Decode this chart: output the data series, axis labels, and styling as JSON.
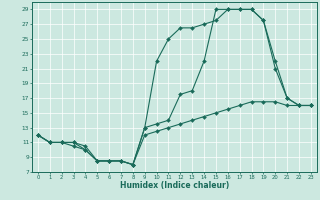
{
  "xlabel": "Humidex (Indice chaleur)",
  "bg_color": "#cce8e0",
  "line_color": "#1a6b5a",
  "grid_color": "#b0d8d0",
  "xlim": [
    -0.5,
    23.5
  ],
  "ylim": [
    7,
    30
  ],
  "yticks": [
    7,
    9,
    11,
    13,
    15,
    17,
    19,
    21,
    23,
    25,
    27,
    29
  ],
  "xticks": [
    0,
    1,
    2,
    3,
    4,
    5,
    6,
    7,
    8,
    9,
    10,
    11,
    12,
    13,
    14,
    15,
    16,
    17,
    18,
    19,
    20,
    21,
    22,
    23
  ],
  "line1_x": [
    0,
    1,
    2,
    3,
    4,
    5,
    6,
    7,
    8,
    9,
    10,
    11,
    12,
    13,
    14,
    15,
    16,
    17,
    18,
    19,
    20,
    21,
    22,
    23
  ],
  "line1_y": [
    12,
    11,
    11,
    10.5,
    10,
    8.5,
    8.5,
    8.5,
    8,
    13,
    22,
    25,
    26.5,
    26.5,
    27,
    27.5,
    29,
    29,
    29,
    27.5,
    21,
    17,
    16,
    16
  ],
  "line2_x": [
    0,
    1,
    2,
    3,
    4,
    5,
    6,
    7,
    8,
    9,
    10,
    11,
    12,
    13,
    14,
    15,
    16,
    17,
    18,
    19,
    20,
    21,
    22,
    23
  ],
  "line2_y": [
    12,
    11,
    11,
    11,
    10,
    8.5,
    8.5,
    8.5,
    8,
    13,
    13.5,
    14,
    17.5,
    18,
    22,
    29,
    29,
    29,
    29,
    27.5,
    22,
    17,
    16,
    16
  ],
  "line3_x": [
    0,
    1,
    2,
    3,
    4,
    5,
    6,
    7,
    8,
    9,
    10,
    11,
    12,
    13,
    14,
    15,
    16,
    17,
    18,
    19,
    20,
    21,
    22,
    23
  ],
  "line3_y": [
    12,
    11,
    11,
    11,
    10.5,
    8.5,
    8.5,
    8.5,
    8,
    12,
    12.5,
    13,
    13.5,
    14,
    14.5,
    15,
    15.5,
    16,
    16.5,
    16.5,
    16.5,
    16,
    16,
    16
  ]
}
